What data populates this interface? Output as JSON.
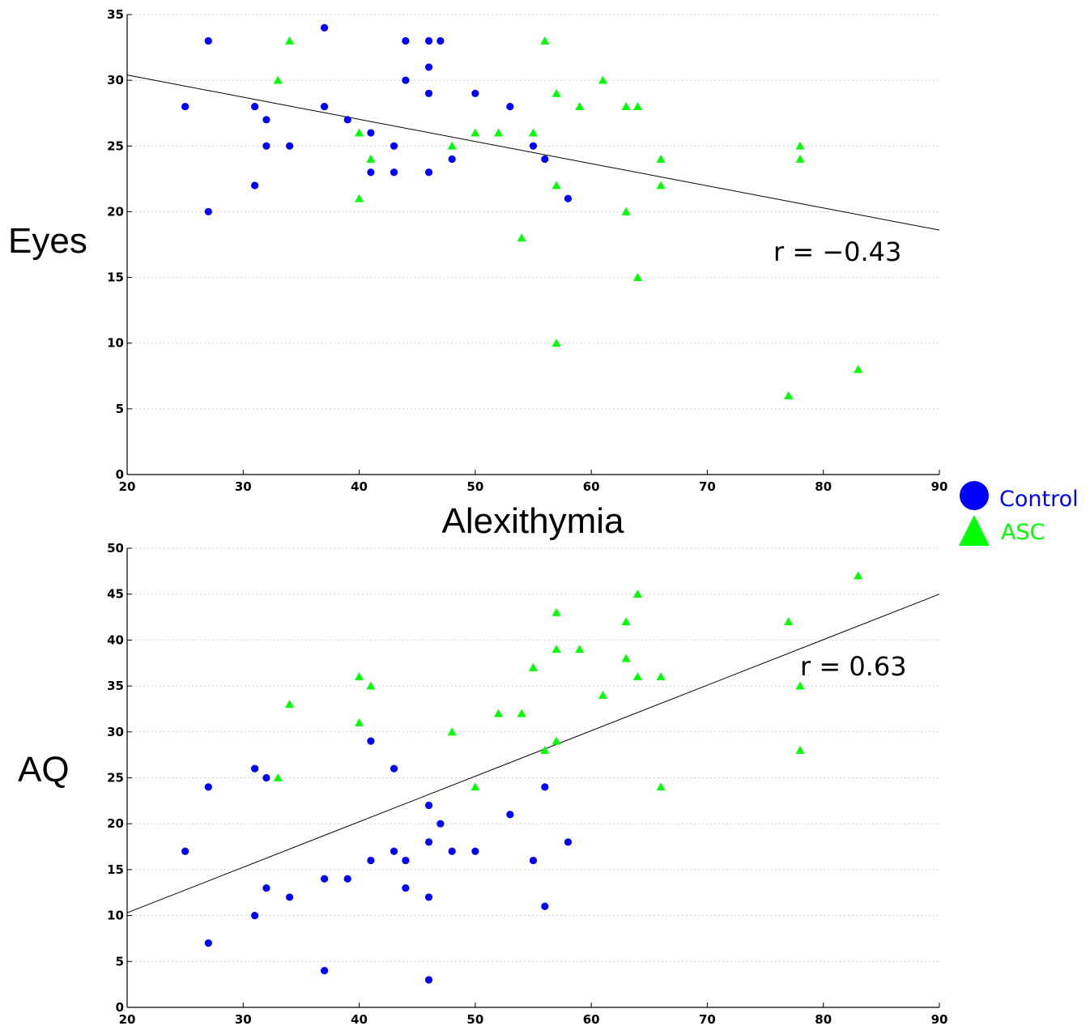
{
  "xlabel": "Alexithymia",
  "legend": [
    {
      "label": "Control",
      "color": "#0000ff",
      "marker": "circle"
    },
    {
      "label": "ASC",
      "color": "#00ff00",
      "marker": "triangle"
    }
  ],
  "chart_data": [
    {
      "type": "scatter",
      "ylabel": "Eyes",
      "xlim": [
        20,
        90
      ],
      "ylim": [
        0,
        35
      ],
      "xticks": [
        20,
        30,
        40,
        50,
        60,
        70,
        80,
        90
      ],
      "yticks": [
        0,
        5,
        10,
        15,
        20,
        25,
        30,
        35
      ],
      "grid": true,
      "annotation": "r = −0.43",
      "fit_line": {
        "x": [
          20,
          90
        ],
        "y": [
          30.4,
          18.6
        ]
      },
      "series": [
        {
          "name": "Control",
          "color": "#0000ff",
          "marker": "circle",
          "points": [
            [
              25,
              28
            ],
            [
              27,
              33
            ],
            [
              27,
              20
            ],
            [
              31,
              28
            ],
            [
              31,
              22
            ],
            [
              32,
              27
            ],
            [
              32,
              25
            ],
            [
              34,
              25
            ],
            [
              37,
              34
            ],
            [
              37,
              28
            ],
            [
              39,
              27
            ],
            [
              41,
              26
            ],
            [
              41,
              23
            ],
            [
              43,
              25
            ],
            [
              43,
              23
            ],
            [
              44,
              33
            ],
            [
              44,
              30
            ],
            [
              46,
              33
            ],
            [
              46,
              31
            ],
            [
              46,
              29
            ],
            [
              46,
              23
            ],
            [
              47,
              33
            ],
            [
              48,
              24
            ],
            [
              50,
              29
            ],
            [
              53,
              28
            ],
            [
              55,
              25
            ],
            [
              56,
              24
            ],
            [
              58,
              21
            ]
          ]
        },
        {
          "name": "ASC",
          "color": "#00ff00",
          "marker": "triangle",
          "points": [
            [
              33,
              30
            ],
            [
              34,
              33
            ],
            [
              40,
              26
            ],
            [
              40,
              21
            ],
            [
              41,
              24
            ],
            [
              48,
              25
            ],
            [
              50,
              26
            ],
            [
              52,
              26
            ],
            [
              54,
              18
            ],
            [
              55,
              26
            ],
            [
              56,
              33
            ],
            [
              57,
              29
            ],
            [
              57,
              22
            ],
            [
              57,
              10
            ],
            [
              59,
              28
            ],
            [
              61,
              30
            ],
            [
              63,
              28
            ],
            [
              63,
              20
            ],
            [
              64,
              28
            ],
            [
              64,
              15
            ],
            [
              66,
              24
            ],
            [
              66,
              22
            ],
            [
              77,
              6
            ],
            [
              78,
              25
            ],
            [
              78,
              24
            ],
            [
              83,
              8
            ]
          ]
        }
      ]
    },
    {
      "type": "scatter",
      "ylabel": "AQ",
      "xlim": [
        20,
        90
      ],
      "ylim": [
        0,
        50
      ],
      "xticks": [
        20,
        30,
        40,
        50,
        60,
        70,
        80,
        90
      ],
      "yticks": [
        0,
        5,
        10,
        15,
        20,
        25,
        30,
        35,
        40,
        45,
        50
      ],
      "grid": true,
      "annotation": "r = 0.63",
      "fit_line": {
        "x": [
          20,
          90
        ],
        "y": [
          10.3,
          45
        ]
      },
      "series": [
        {
          "name": "Control",
          "color": "#0000ff",
          "marker": "circle",
          "points": [
            [
              25,
              17
            ],
            [
              27,
              24
            ],
            [
              27,
              7
            ],
            [
              31,
              26
            ],
            [
              31,
              10
            ],
            [
              32,
              25
            ],
            [
              32,
              13
            ],
            [
              34,
              12
            ],
            [
              37,
              14
            ],
            [
              37,
              4
            ],
            [
              39,
              14
            ],
            [
              41,
              29
            ],
            [
              41,
              16
            ],
            [
              43,
              26
            ],
            [
              43,
              17
            ],
            [
              44,
              16
            ],
            [
              44,
              13
            ],
            [
              46,
              22
            ],
            [
              46,
              18
            ],
            [
              46,
              12
            ],
            [
              46,
              3
            ],
            [
              47,
              20
            ],
            [
              48,
              17
            ],
            [
              50,
              17
            ],
            [
              53,
              21
            ],
            [
              55,
              16
            ],
            [
              56,
              24
            ],
            [
              56,
              11
            ],
            [
              58,
              18
            ]
          ]
        },
        {
          "name": "ASC",
          "color": "#00ff00",
          "marker": "triangle",
          "points": [
            [
              33,
              25
            ],
            [
              34,
              33
            ],
            [
              40,
              36
            ],
            [
              40,
              31
            ],
            [
              41,
              35
            ],
            [
              48,
              30
            ],
            [
              50,
              24
            ],
            [
              52,
              32
            ],
            [
              54,
              32
            ],
            [
              55,
              37
            ],
            [
              56,
              28
            ],
            [
              57,
              43
            ],
            [
              57,
              39
            ],
            [
              57,
              29
            ],
            [
              59,
              39
            ],
            [
              61,
              34
            ],
            [
              63,
              42
            ],
            [
              63,
              38
            ],
            [
              64,
              45
            ],
            [
              64,
              36
            ],
            [
              66,
              36
            ],
            [
              66,
              24
            ],
            [
              77,
              42
            ],
            [
              78,
              35
            ],
            [
              78,
              28
            ],
            [
              83,
              47
            ]
          ]
        }
      ]
    }
  ]
}
